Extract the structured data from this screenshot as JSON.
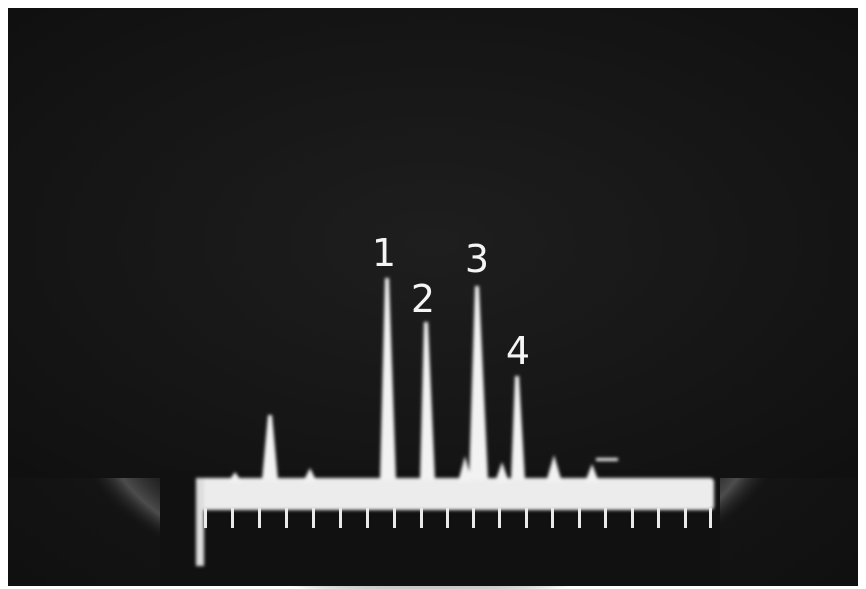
{
  "peak_labels": [
    "1",
    "2",
    "3",
    "4"
  ]
}
